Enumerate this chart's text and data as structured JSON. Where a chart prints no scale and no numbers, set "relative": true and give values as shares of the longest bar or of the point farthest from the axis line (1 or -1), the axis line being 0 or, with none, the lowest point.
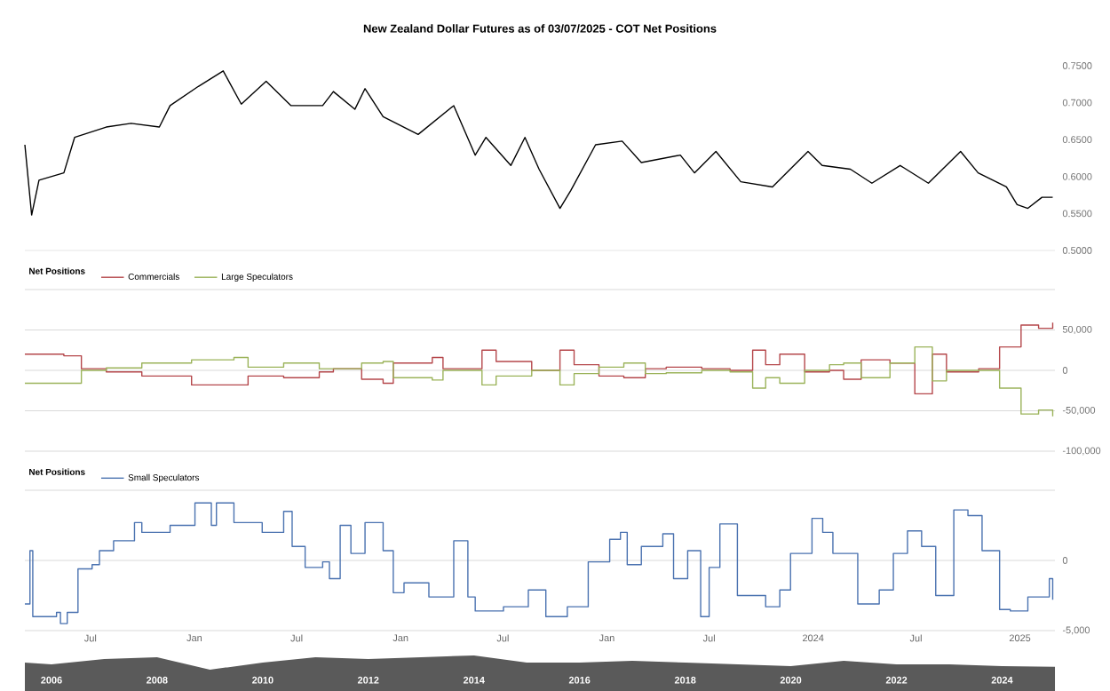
{
  "chart_data": [
    {
      "type": "line",
      "title": "New Zealand Dollar Futures as of 03/07/2025 - COT Net Positions",
      "xlim": [
        "2020-03-07",
        "2025-03-04"
      ],
      "ylim": [
        0.5,
        0.75
      ],
      "yticks": [
        {
          "value": 0.5,
          "label": "0.5000"
        },
        {
          "value": 0.55,
          "label": "0.5500"
        },
        {
          "value": 0.6,
          "label": "0.6000"
        },
        {
          "value": 0.65,
          "label": "0.6500"
        },
        {
          "value": 0.7,
          "label": "0.7000"
        },
        {
          "value": 0.75,
          "label": "0.7500"
        }
      ],
      "tick_labels": "y",
      "grid": false,
      "x": [
        "2020-03-07",
        "2020-03-19",
        "2020-04-01",
        "2020-05-15",
        "2020-06-03",
        "2020-07-29",
        "2020-09-11",
        "2020-10-31",
        "2020-11-19",
        "2021-01-08",
        "2021-02-21",
        "2021-03-25",
        "2021-05-08",
        "2021-06-21",
        "2021-08-16",
        "2021-09-04",
        "2021-10-12",
        "2021-10-30",
        "2021-12-01",
        "2022-02-01",
        "2022-04-05",
        "2022-05-13",
        "2022-06-01",
        "2022-07-15",
        "2022-08-09",
        "2022-09-03",
        "2022-10-10",
        "2022-10-29",
        "2022-12-12",
        "2023-01-28",
        "2023-03-03",
        "2023-05-11",
        "2023-06-05",
        "2023-07-13",
        "2023-08-26",
        "2023-10-21",
        "2023-12-23",
        "2024-01-17",
        "2024-03-07",
        "2024-04-14",
        "2024-06-03",
        "2024-07-23",
        "2024-09-18",
        "2024-10-19",
        "2024-12-08",
        "2024-12-27",
        "2025-01-15",
        "2025-02-09",
        "2025-02-28"
      ],
      "series": [
        {
          "color": "#000000",
          "values": [
            0.643,
            0.548,
            0.595,
            0.605,
            0.653,
            0.667,
            0.672,
            0.667,
            0.696,
            0.722,
            0.743,
            0.698,
            0.729,
            0.696,
            0.696,
            0.715,
            0.691,
            0.719,
            0.681,
            0.657,
            0.696,
            0.629,
            0.653,
            0.615,
            0.653,
            0.61,
            0.557,
            0.581,
            0.643,
            0.648,
            0.619,
            0.629,
            0.605,
            0.634,
            0.593,
            0.586,
            0.634,
            0.615,
            0.61,
            0.591,
            0.615,
            0.591,
            0.634,
            0.605,
            0.586,
            0.562,
            0.557,
            0.572,
            0.572
          ]
        }
      ]
    },
    {
      "type": "step",
      "title": "Net Positions",
      "legend": "top left",
      "grid": "y",
      "tick_labels": "y",
      "xlim": [
        "2020-03-07",
        "2025-03-04"
      ],
      "ylim": [
        -100000,
        100000
      ],
      "yticks": [
        {
          "value": -100000,
          "label": "-100,000"
        },
        {
          "value": -50000,
          "label": "-50,000"
        },
        0,
        {
          "value": 50000,
          "label": "50,000"
        },
        {
          "value": 100000,
          "label": null
        }
      ],
      "x": [
        "2020-03-07",
        "2020-05-15",
        "2020-06-15",
        "2020-07-29",
        "2020-09-30",
        "2020-12-27",
        "2021-03-12",
        "2021-04-06",
        "2021-06-08",
        "2021-08-10",
        "2021-09-04",
        "2021-10-24",
        "2021-12-01",
        "2021-12-19",
        "2022-02-26",
        "2022-03-17",
        "2022-04-30",
        "2022-05-25",
        "2022-06-19",
        "2022-08-21",
        "2022-10-10",
        "2022-11-04",
        "2022-12-18",
        "2023-01-31",
        "2023-03-10",
        "2023-04-16",
        "2023-06-18",
        "2023-08-07",
        "2023-09-16",
        "2023-10-09",
        "2023-11-03",
        "2023-12-17",
        "2024-01-30",
        "2024-02-24",
        "2024-03-26",
        "2024-05-16",
        "2024-06-29",
        "2024-07-30",
        "2024-08-24",
        "2024-10-20",
        "2024-11-26",
        "2025-01-03",
        "2025-02-03",
        "2025-02-28"
      ],
      "series": [
        {
          "name": "Commercials",
          "color": "#b5474b",
          "values": [
            20000,
            18000,
            2000,
            -2000,
            -7000,
            -18000,
            -18000,
            -7000,
            -9000,
            -2000,
            2000,
            -11000,
            -16000,
            9000,
            16000,
            2000,
            2000,
            25000,
            11000,
            0,
            25000,
            7000,
            -7000,
            -9000,
            2000,
            4000,
            2000,
            0,
            25000,
            7000,
            20000,
            -2000,
            0,
            -11000,
            13000,
            9000,
            -29000,
            20000,
            -2000,
            2000,
            29000,
            56000,
            52000,
            59000
          ]
        },
        {
          "name": "Large Speculators",
          "color": "#9bb35a",
          "values": [
            -16000,
            -16000,
            0,
            3000,
            9000,
            13000,
            16000,
            4000,
            9000,
            2000,
            2000,
            9000,
            11000,
            -9000,
            -12000,
            0,
            0,
            -18000,
            -7000,
            0,
            -18000,
            -4000,
            4000,
            9000,
            -4000,
            -3000,
            0,
            -2000,
            -22000,
            -9000,
            -16000,
            0,
            7000,
            9000,
            -9000,
            9000,
            29000,
            -13000,
            0,
            0,
            -22000,
            -54000,
            -49000,
            -57000
          ]
        }
      ]
    },
    {
      "type": "step",
      "title": "Net Positions",
      "legend": "top left",
      "grid": "y",
      "xlim": [
        "2020-03-07",
        "2025-03-04"
      ],
      "ylim": [
        -5000,
        5000
      ],
      "yticks": [
        {
          "value": -5000,
          "label": "-5,000"
        },
        0,
        {
          "value": 5000,
          "label": null
        }
      ],
      "xticks": [
        {
          "value": "2020-07-01",
          "label": "Jul"
        },
        {
          "value": "2021-01-01",
          "label": "Jan"
        },
        {
          "value": "2021-07-01",
          "label": "Jul"
        },
        {
          "value": "2022-01-01",
          "label": "Jan"
        },
        {
          "value": "2022-07-01",
          "label": "Jul"
        },
        {
          "value": "2023-01-01",
          "label": "Jan"
        },
        {
          "value": "2023-07-01",
          "label": "Jul"
        },
        {
          "value": "2024-01-01",
          "label": "2024"
        },
        {
          "value": "2024-07-01",
          "label": "Jul"
        },
        {
          "value": "2025-01-01",
          "label": "2025"
        }
      ],
      "x": [
        "2020-03-07",
        "2020-03-16",
        "2020-03-21",
        "2020-05-02",
        "2020-05-09",
        "2020-05-21",
        "2020-06-09",
        "2020-07-04",
        "2020-07-17",
        "2020-08-11",
        "2020-09-17",
        "2020-09-30",
        "2020-11-19",
        "2021-01-02",
        "2021-01-31",
        "2021-02-09",
        "2021-03-12",
        "2021-05-01",
        "2021-06-08",
        "2021-06-23",
        "2021-07-16",
        "2021-08-16",
        "2021-08-28",
        "2021-09-16",
        "2021-10-05",
        "2021-10-30",
        "2021-12-01",
        "2021-12-19",
        "2022-01-07",
        "2022-02-20",
        "2022-04-05",
        "2022-04-30",
        "2022-05-13",
        "2022-07-02",
        "2022-08-15",
        "2022-09-15",
        "2022-10-23",
        "2022-11-29",
        "2023-01-06",
        "2023-01-25",
        "2023-02-06",
        "2023-03-03",
        "2023-04-10",
        "2023-04-29",
        "2023-05-24",
        "2023-06-16",
        "2023-07-01",
        "2023-07-20",
        "2023-08-20",
        "2023-10-09",
        "2023-11-03",
        "2023-11-22",
        "2023-12-30",
        "2024-01-18",
        "2024-02-05",
        "2024-03-20",
        "2024-04-27",
        "2024-05-22",
        "2024-06-16",
        "2024-07-11",
        "2024-08-05",
        "2024-09-06",
        "2024-10-01",
        "2024-10-26",
        "2024-11-26",
        "2024-12-15",
        "2025-01-15",
        "2025-02-22",
        "2025-02-28"
      ],
      "series": [
        {
          "name": "Small Speculators",
          "color": "#4a72b0",
          "values": [
            -3100,
            700,
            -4000,
            -3700,
            -4500,
            -3700,
            -600,
            -300,
            700,
            1400,
            2700,
            2000,
            2500,
            4100,
            2500,
            4100,
            2700,
            2000,
            3500,
            1000,
            -500,
            -100,
            -1300,
            2500,
            500,
            2700,
            700,
            -2300,
            -1600,
            -2600,
            1400,
            -2600,
            -3600,
            -3300,
            -2100,
            -4000,
            -3300,
            -100,
            1500,
            2000,
            -300,
            1000,
            1900,
            -1300,
            700,
            -4000,
            -500,
            2600,
            -2500,
            -3300,
            -2100,
            500,
            3000,
            2000,
            500,
            -3100,
            -2100,
            500,
            2100,
            1000,
            -2500,
            3600,
            3200,
            700,
            -3500,
            -3600,
            -2600,
            -1300,
            -2800
          ]
        }
      ]
    },
    {
      "type": "area",
      "relative": true,
      "tick_labels": "x",
      "grid": false,
      "xlim": [
        "2005-07",
        "2025-01"
      ],
      "xticks": [
        {
          "value": "2006",
          "label": "2006"
        },
        {
          "value": "2008",
          "label": "2008"
        },
        {
          "value": "2010",
          "label": "2010"
        },
        {
          "value": "2012",
          "label": "2012"
        },
        {
          "value": "2014",
          "label": "2014"
        },
        {
          "value": "2016",
          "label": "2016"
        },
        {
          "value": "2018",
          "label": "2018"
        },
        {
          "value": "2020",
          "label": "2020"
        },
        {
          "value": "2022",
          "label": "2022"
        },
        {
          "value": "2024",
          "label": "2024"
        }
      ],
      "x": [
        "2005-07",
        "2006",
        "2007",
        "2008",
        "2009",
        "2010",
        "2011",
        "2012",
        "2013",
        "2014",
        "2015",
        "2016",
        "2017",
        "2018",
        "2019",
        "2020",
        "2021",
        "2022",
        "2023",
        "2024",
        "2025"
      ],
      "series": [
        {
          "color": "#5a5a5a",
          "values": [
            0.8,
            0.75,
            0.9,
            0.95,
            0.6,
            0.8,
            0.95,
            0.9,
            0.95,
            1,
            0.8,
            0.8,
            0.85,
            0.8,
            0.75,
            0.7,
            0.85,
            0.75,
            0.75,
            0.7,
            0.68
          ]
        }
      ]
    }
  ]
}
